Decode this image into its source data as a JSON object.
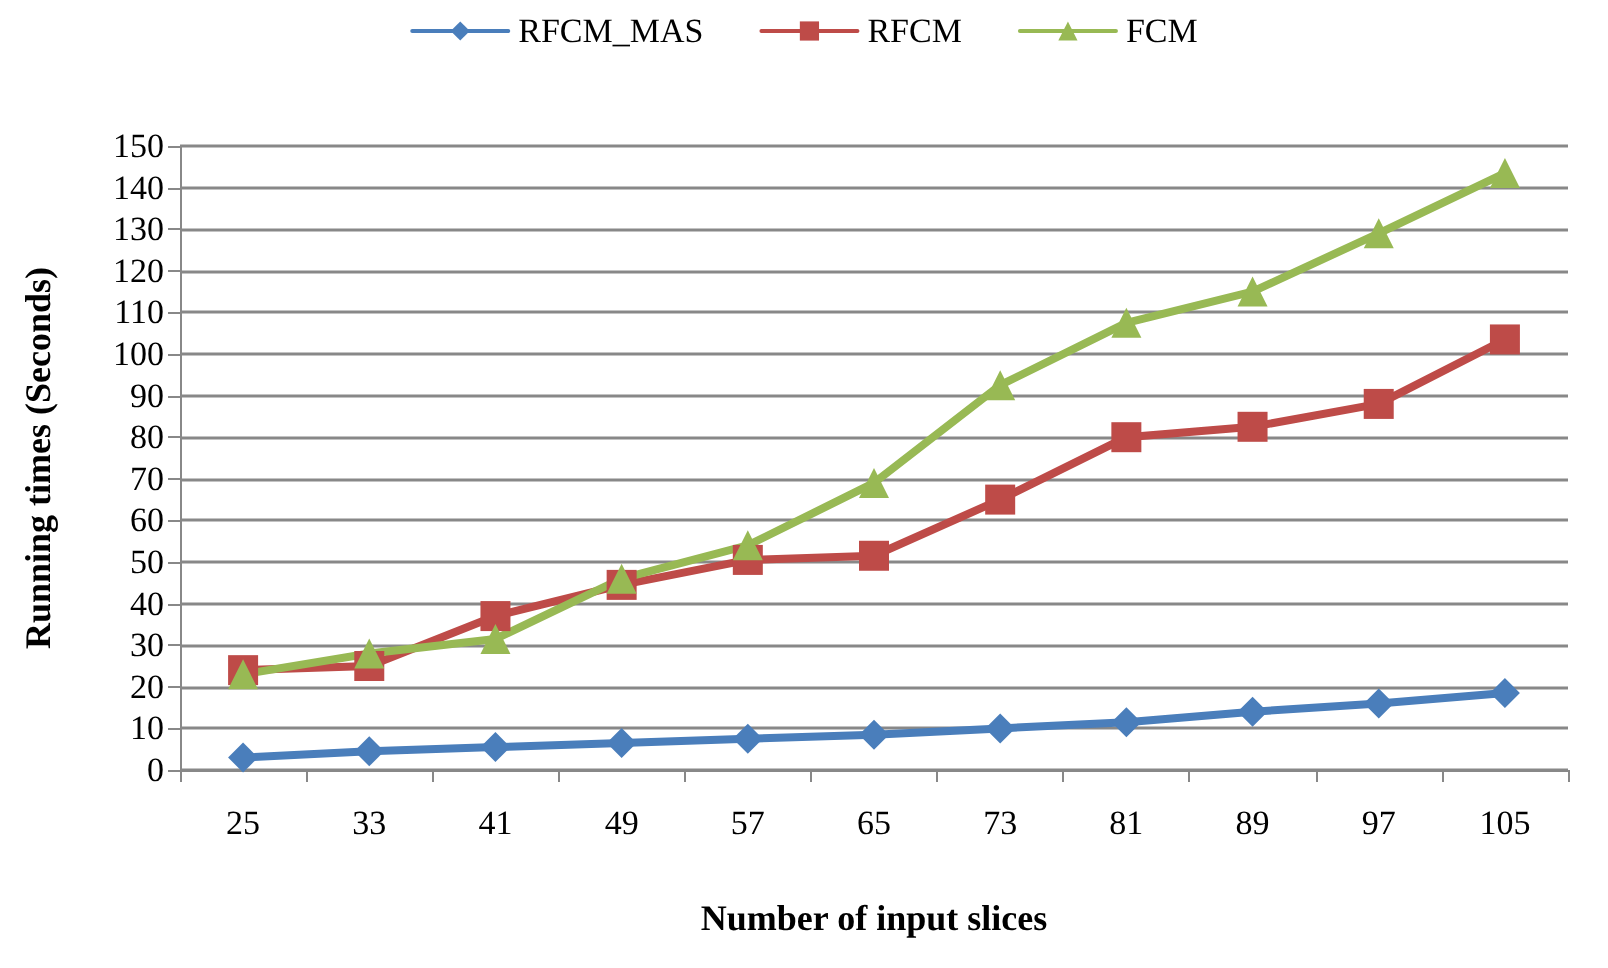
{
  "chart_data": {
    "type": "line",
    "xlabel": "Number of input slices",
    "ylabel": "Running times (Seconds)",
    "categories": [
      "25",
      "33",
      "41",
      "49",
      "57",
      "65",
      "73",
      "81",
      "89",
      "97",
      "105"
    ],
    "series": [
      {
        "name": "RFCM_MAS",
        "color": "#4a7ebb",
        "marker": "diamond",
        "values": [
          3,
          4.5,
          5.5,
          6.5,
          7.5,
          8.5,
          10,
          11.5,
          14,
          16,
          18.5
        ]
      },
      {
        "name": "RFCM",
        "color": "#be4b48",
        "marker": "square",
        "values": [
          24,
          25,
          37,
          44.5,
          50.5,
          51.5,
          65,
          80,
          82.5,
          88,
          103.5
        ]
      },
      {
        "name": "FCM",
        "color": "#98b954",
        "marker": "triangle",
        "values": [
          23,
          28,
          31.5,
          46,
          54,
          69,
          92.5,
          107.5,
          115,
          129,
          143.5
        ]
      }
    ],
    "ylim": [
      0,
      150
    ],
    "yticks": [
      0,
      10,
      20,
      30,
      40,
      50,
      60,
      70,
      80,
      90,
      100,
      110,
      120,
      130,
      140,
      150
    ],
    "grid": "y",
    "legend": "top",
    "line_style": "solid"
  }
}
